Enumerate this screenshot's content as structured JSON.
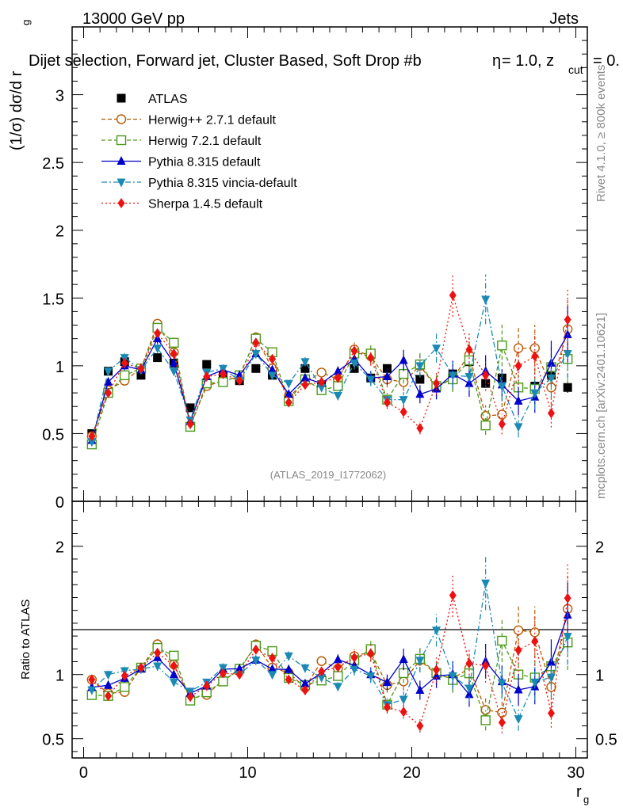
{
  "header": {
    "left": "13000 GeV pp",
    "right": "Jets",
    "subtitle": "Dijet selection, Forward jet, Cluster Based, Soft Drop #b",
    "subtitle_suffix": "= 1.0, z",
    "subtitle_cut": "cut",
    "subtitle_tail": "= 0.",
    "subtitle_eta": "η"
  },
  "side_labels": {
    "rivet": "Rivet 4.1.0, ≥ 800k events",
    "mcplots": "mcplots.cern.ch [arXiv:2401.10621]",
    "analysis": "(ATLAS_2019_I1772062)"
  },
  "chart_data": {
    "type": "scatter",
    "title": "Dijet selection, Forward jet, Cluster Based, Soft Drop",
    "xlabel": "r",
    "xlabel_sub": "g",
    "ylabel": "(1/σ) dσ/d r",
    "ylabel_sub": "g",
    "ratio_ylabel": "Ratio to ATLAS",
    "xlim": [
      -0.7,
      30.7
    ],
    "ylim_main": [
      0,
      3.5
    ],
    "ylim_ratio": [
      0.35,
      2.35
    ],
    "xticks": [
      "0",
      "10",
      "20",
      "30"
    ],
    "yticks_main": [
      "0",
      "0.5",
      "1",
      "1.5",
      "2",
      "2.5",
      "3"
    ],
    "yticks_ratio": [
      "0.5",
      "1",
      "2"
    ],
    "x": [
      0.5,
      1.5,
      2.5,
      3.5,
      4.5,
      5.5,
      6.5,
      7.5,
      8.5,
      9.5,
      10.5,
      11.5,
      12.5,
      13.5,
      14.5,
      15.5,
      16.5,
      17.5,
      18.5,
      19.5,
      20.5,
      21.5,
      22.5,
      23.5,
      24.5,
      25.5,
      26.5,
      27.5,
      28.5,
      29.5
    ],
    "series": [
      {
        "name": "ATLAS",
        "color": "#000000",
        "marker": "filled-square",
        "line": "none",
        "values": [
          0.5,
          0.96,
          1.03,
          0.93,
          1.06,
          1.02,
          0.69,
          1.01,
          0.93,
          0.89,
          0.98,
          0.93,
          0.76,
          0.98,
          0.86,
          0.86,
          0.98,
          0.91,
          0.98,
          0.93,
          0.9,
          0.84,
          0.94,
          1.03,
          0.87,
          0.91,
          0.84,
          0.85,
          0.93,
          0.84
        ]
      },
      {
        "name": "Herwig++ 2.7.1 default",
        "color": "#b85a00",
        "marker": "open-circle",
        "line": "dashed",
        "values": [
          0.48,
          0.82,
          0.89,
          0.98,
          1.31,
          1.1,
          0.56,
          0.85,
          0.89,
          0.92,
          1.21,
          0.98,
          0.77,
          0.88,
          0.95,
          0.9,
          1.12,
          1.07,
          0.9,
          0.88,
          1.0,
          0.84,
          0.91,
          1.08,
          0.63,
          0.64,
          1.13,
          1.13,
          0.84,
          1.27
        ]
      },
      {
        "name": "Herwig 7.2.1 default",
        "color": "#4a9a1a",
        "marker": "open-square",
        "line": "dashed",
        "values": [
          0.42,
          0.8,
          0.93,
          0.98,
          1.28,
          1.17,
          0.55,
          0.87,
          0.88,
          0.93,
          1.2,
          1.1,
          0.74,
          0.9,
          0.82,
          0.85,
          1.09,
          1.09,
          0.75,
          0.94,
          1.01,
          0.85,
          0.9,
          1.04,
          0.56,
          1.15,
          0.84,
          0.83,
          0.99,
          1.05
        ]
      },
      {
        "name": "Pythia 8.315 default",
        "color": "#0000cc",
        "marker": "filled-triangle-up",
        "line": "solid",
        "values": [
          0.45,
          0.88,
          1.0,
          0.97,
          1.2,
          1.02,
          0.59,
          0.92,
          0.97,
          0.93,
          1.09,
          0.97,
          0.79,
          0.91,
          0.87,
          0.96,
          1.05,
          0.91,
          0.92,
          1.04,
          0.79,
          0.83,
          0.94,
          0.87,
          0.96,
          0.86,
          0.74,
          0.77,
          1.02,
          1.23
        ]
      },
      {
        "name": "Pythia 8.315 vincia-default",
        "color": "#1a8ab4",
        "marker": "filled-triangle-down",
        "line": "dashdot",
        "values": [
          0.44,
          0.96,
          1.06,
          0.97,
          1.13,
          0.96,
          0.6,
          0.95,
          0.98,
          0.89,
          1.09,
          0.93,
          0.87,
          1.03,
          0.84,
          0.78,
          1.02,
          0.9,
          0.75,
          0.75,
          1.0,
          1.13,
          0.93,
          0.92,
          1.49,
          0.85,
          0.55,
          0.8,
          0.91,
          1.09
        ]
      },
      {
        "name": "Sherpa 1.4.5 default",
        "color": "#ee1111",
        "marker": "filled-diamond",
        "line": "dotted",
        "values": [
          0.48,
          0.8,
          1.02,
          0.98,
          1.24,
          1.09,
          0.57,
          0.92,
          0.94,
          0.89,
          1.17,
          1.05,
          0.73,
          0.86,
          0.88,
          0.91,
          1.11,
          1.06,
          0.73,
          0.66,
          0.54,
          0.87,
          1.52,
          1.12,
          0.93,
          0.57,
          1.0,
          1.07,
          0.65,
          1.34
        ]
      }
    ],
    "legend_position": "top-left"
  }
}
